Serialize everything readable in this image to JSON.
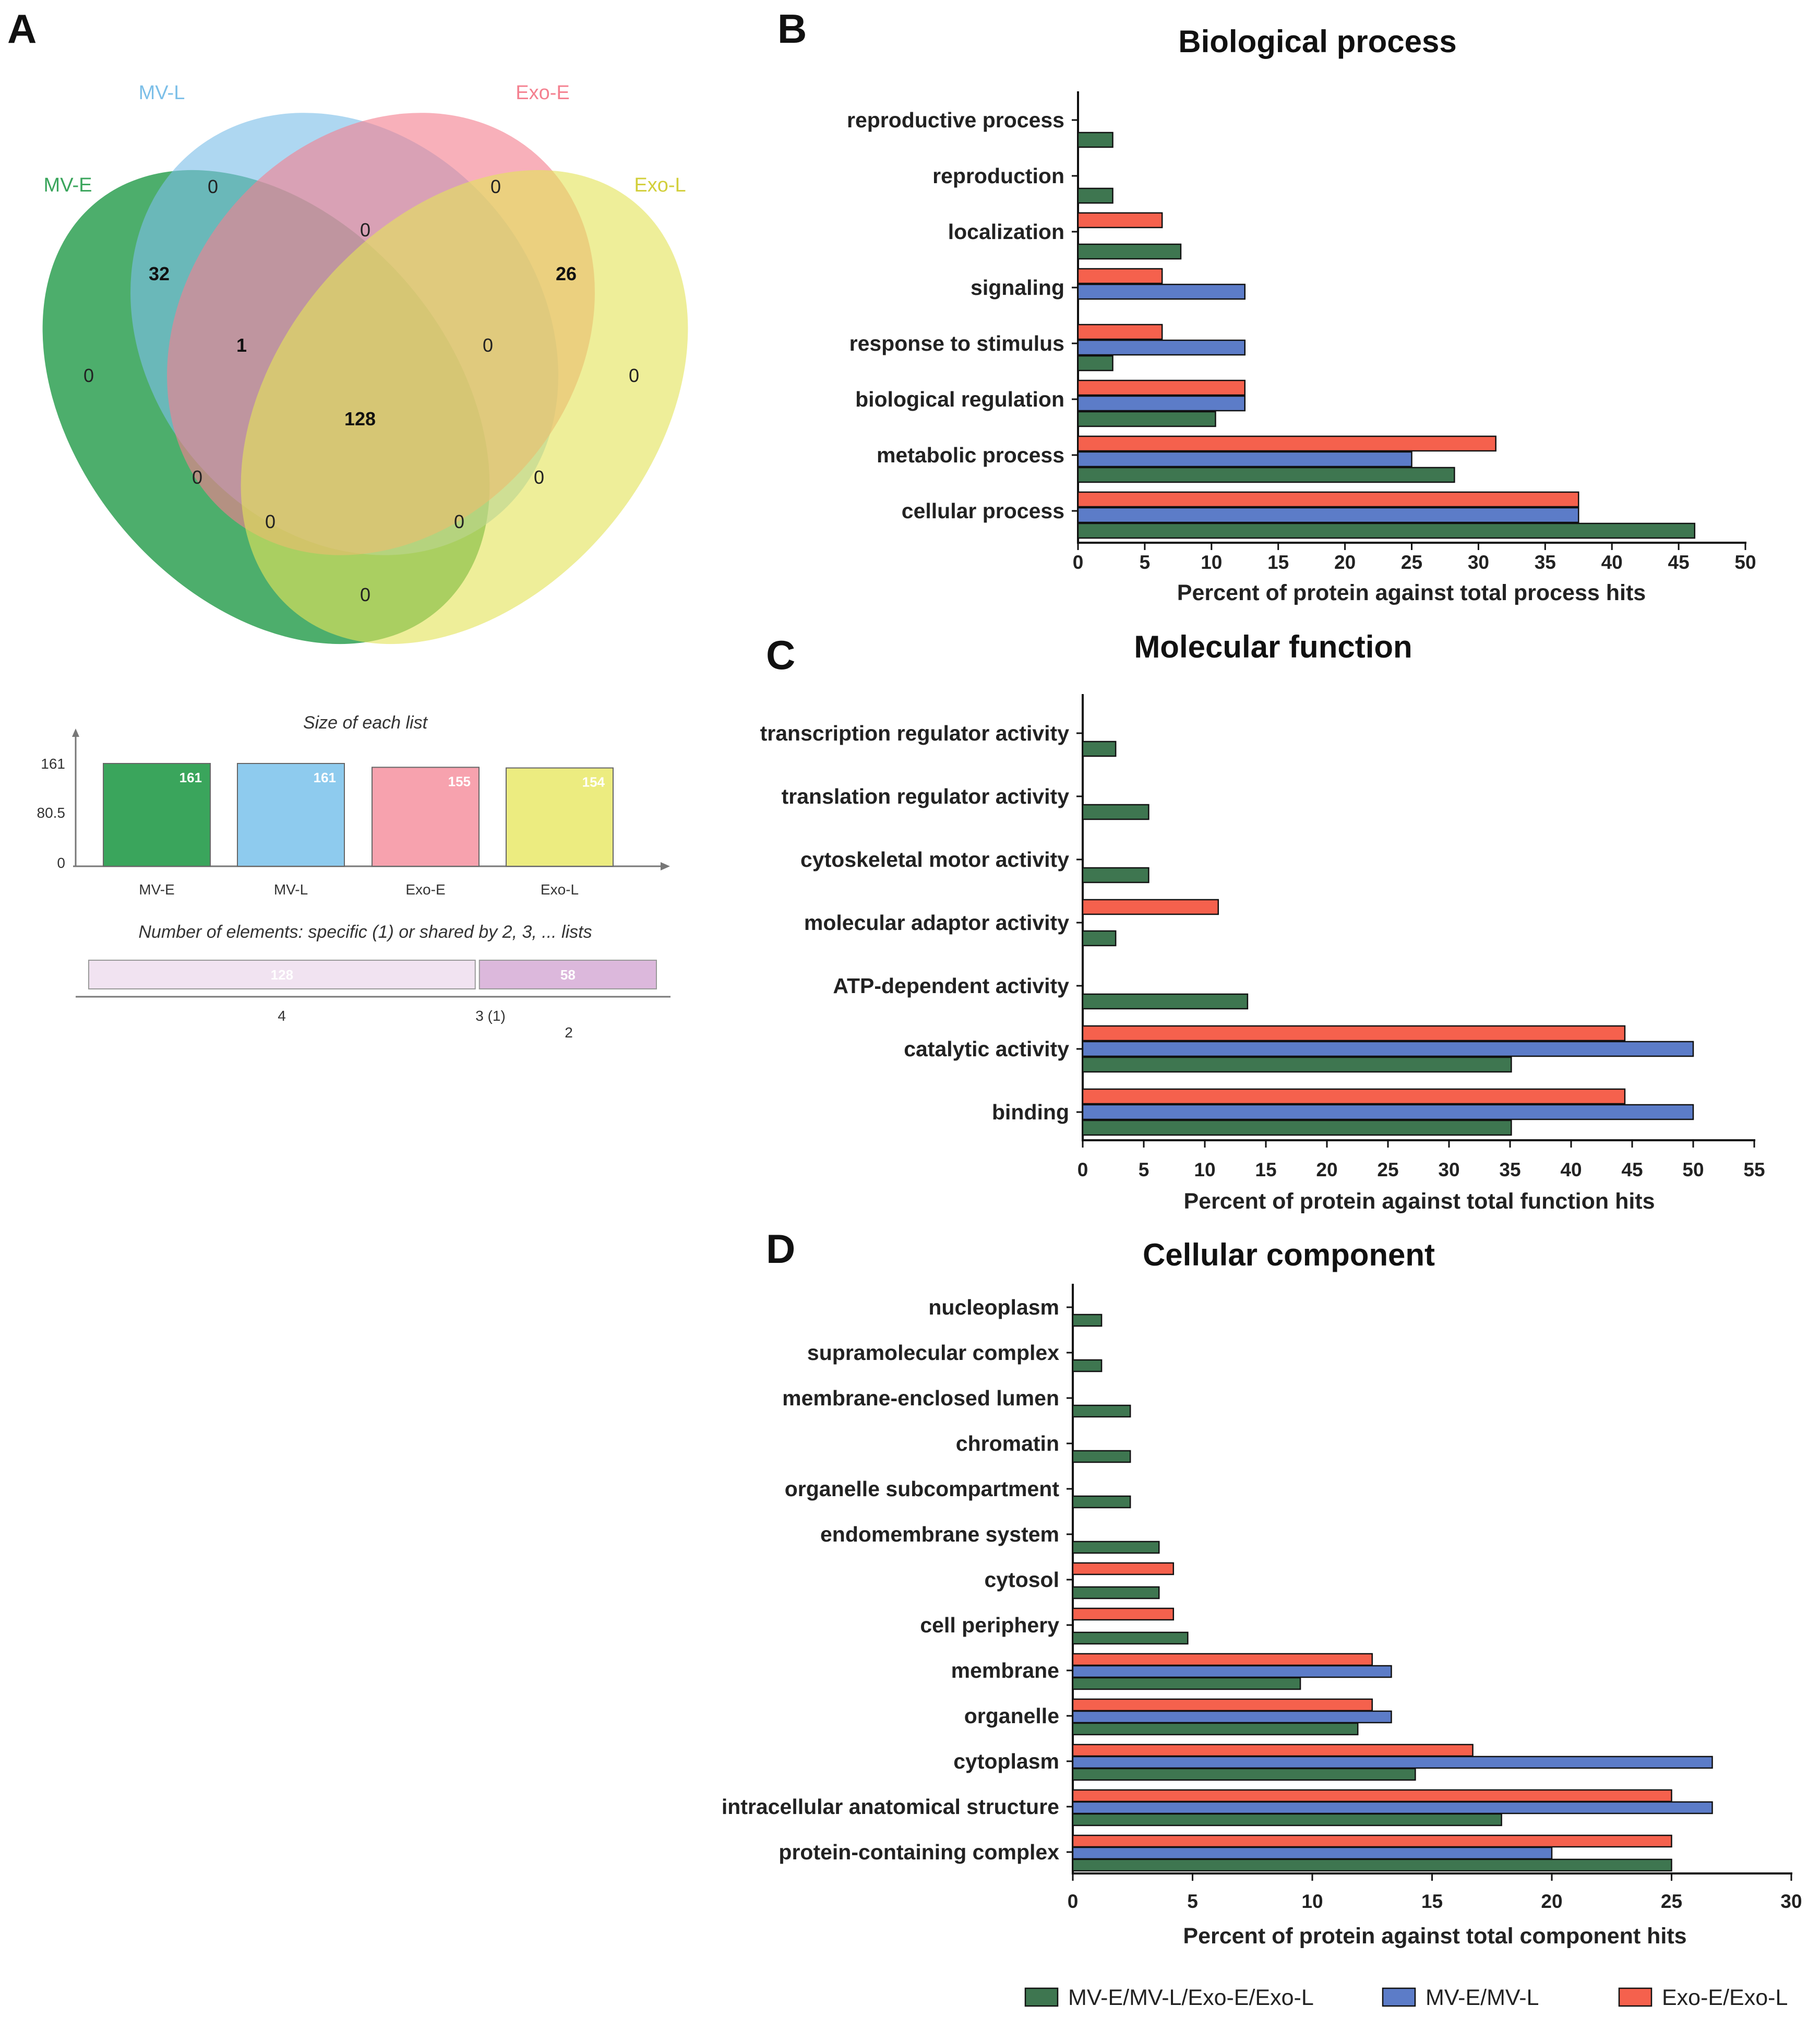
{
  "panels": {
    "a": "A",
    "b": "B",
    "c": "C",
    "d": "D"
  },
  "venn": {
    "sets": [
      {
        "name": "MV-E",
        "color": "#3aa55c"
      },
      {
        "name": "MV-L",
        "color": "#7cbfe8"
      },
      {
        "name": "Exo-E",
        "color": "#f4808f"
      },
      {
        "name": "Exo-L",
        "color": "#e4e35a"
      }
    ],
    "regions": {
      "mvl_only": "0",
      "exoe_only": "0",
      "mve_only": "0",
      "exol_only": "0",
      "mve_mvl": "32",
      "exoe_exol": "26",
      "mvl_exoe": "0",
      "mve_mvl_exoe": "1",
      "mvl_exoe_exol": "0",
      "all": "128",
      "mve_exoe": "0",
      "mvl_exol": "0",
      "mve_mvl_exol": "0",
      "mve_exoe_exol": "0",
      "mve_exol": "0"
    }
  },
  "list_sizes": {
    "title": "Size of each list",
    "y_ticks": [
      "161",
      "80.5",
      "0"
    ],
    "ylim": [
      0,
      161
    ],
    "items": [
      {
        "name": "MV-E",
        "value": 161,
        "label": "161",
        "color": "#3aa55c"
      },
      {
        "name": "MV-L",
        "value": 161,
        "label": "161",
        "color": "#8ecbee"
      },
      {
        "name": "Exo-E",
        "value": 155,
        "label": "155",
        "color": "#f7a2ae"
      },
      {
        "name": "Exo-L",
        "value": 154,
        "label": "154",
        "color": "#ecec80"
      }
    ]
  },
  "shared": {
    "title": "Number of elements: specific (1) or shared by 2, 3, ... lists",
    "segments": [
      {
        "count": 128,
        "label": "128",
        "color": "#f1e3f1"
      },
      {
        "count": 58,
        "label": "58",
        "color": "#dcb8dc"
      }
    ],
    "axis_labels": [
      "4",
      "3 (1)",
      "2"
    ]
  },
  "legend": [
    {
      "label": "MV-E/MV-L/Exo-E/Exo-L",
      "color": "#3e7650"
    },
    {
      "label": "MV-E/MV-L",
      "color": "#5c7cc8"
    },
    {
      "label": "Exo-E/Exo-L",
      "color": "#f5614d"
    }
  ],
  "chart_data": [
    {
      "type": "bar",
      "orientation": "horizontal",
      "title": "Biological process",
      "xlabel": "Percent of protein against total process hits",
      "xlim": [
        0,
        50
      ],
      "xticks": [
        0,
        5,
        10,
        15,
        20,
        25,
        30,
        35,
        40,
        45,
        50
      ],
      "categories": [
        "reproductive process",
        "reproduction",
        "localization",
        "signaling",
        "response to stimulus",
        "biological regulation",
        "metabolic process",
        "cellular process"
      ],
      "series": [
        {
          "name": "Exo-E/Exo-L",
          "values": [
            0,
            0,
            6.3,
            6.3,
            6.3,
            12.5,
            31.3,
            37.5
          ]
        },
        {
          "name": "MV-E/MV-L",
          "values": [
            0,
            0,
            0,
            12.5,
            12.5,
            12.5,
            25.0,
            37.5
          ]
        },
        {
          "name": "MV-E/MV-L/Exo-E/Exo-L",
          "values": [
            2.6,
            2.6,
            7.7,
            0,
            2.6,
            10.3,
            28.2,
            46.2
          ]
        }
      ]
    },
    {
      "type": "bar",
      "orientation": "horizontal",
      "title": "Molecular function",
      "xlabel": "Percent of protein against total function hits",
      "xlim": [
        0,
        55
      ],
      "xticks": [
        0,
        5,
        10,
        15,
        20,
        25,
        30,
        35,
        40,
        45,
        50,
        55
      ],
      "categories": [
        "transcription regulator activity",
        "translation regulator activity",
        "cytoskeletal motor activity",
        "molecular adaptor activity",
        "ATP-dependent activity",
        "catalytic activity",
        "binding"
      ],
      "series": [
        {
          "name": "Exo-E/Exo-L",
          "values": [
            0,
            0,
            0,
            11.1,
            0,
            44.4,
            44.4
          ]
        },
        {
          "name": "MV-E/MV-L",
          "values": [
            0,
            0,
            0,
            0,
            0,
            50.0,
            50.0
          ]
        },
        {
          "name": "MV-E/MV-L/Exo-E/Exo-L",
          "values": [
            2.7,
            5.4,
            5.4,
            2.7,
            13.5,
            35.1,
            35.1
          ]
        }
      ]
    },
    {
      "type": "bar",
      "orientation": "horizontal",
      "title": "Cellular component",
      "xlabel": "Percent of protein against total component hits",
      "xlim": [
        0,
        30
      ],
      "xticks": [
        0,
        5,
        10,
        15,
        20,
        25,
        30
      ],
      "categories": [
        "nucleoplasm",
        "supramolecular complex",
        "membrane-enclosed lumen",
        "chromatin",
        "organelle subcompartment",
        "endomembrane system",
        "cytosol",
        "cell periphery",
        "membrane",
        "organelle",
        "cytoplasm",
        "intracellular anatomical structure",
        "protein-containing complex"
      ],
      "series": [
        {
          "name": "Exo-E/Exo-L",
          "values": [
            0,
            0,
            0,
            0,
            0,
            0,
            4.2,
            4.2,
            12.5,
            12.5,
            16.7,
            25.0,
            25.0
          ]
        },
        {
          "name": "MV-E/MV-L",
          "values": [
            0,
            0,
            0,
            0,
            0,
            0,
            0,
            0,
            13.3,
            13.3,
            26.7,
            26.7,
            20.0
          ]
        },
        {
          "name": "MV-E/MV-L/Exo-E/Exo-L",
          "values": [
            1.2,
            1.2,
            2.4,
            2.4,
            2.4,
            3.6,
            3.6,
            4.8,
            9.5,
            11.9,
            14.3,
            17.9,
            25.0
          ]
        }
      ]
    }
  ]
}
